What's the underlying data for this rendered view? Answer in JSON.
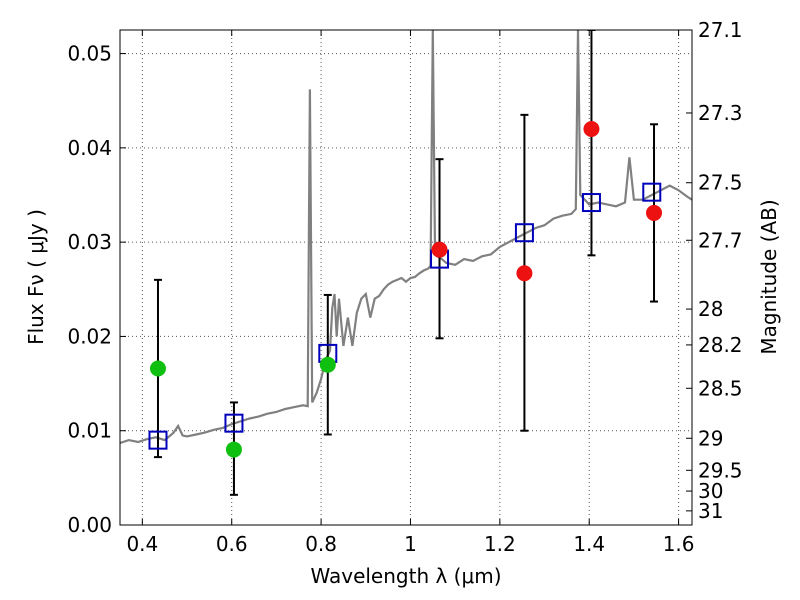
{
  "chart_data": {
    "type": "scatter",
    "xlabel": "Wavelength  λ (μm)",
    "ylabel": "Flux  Fν  ( μJy )",
    "ylabel_right": "Magnitude (AB)",
    "xlim": [
      0.35,
      1.63
    ],
    "ylim": [
      0.0,
      0.0525
    ],
    "grid": true,
    "x_ticks": [
      0.4,
      0.6,
      0.8,
      1.0,
      1.2,
      1.4,
      1.6
    ],
    "x_tick_labels": [
      "0.4",
      "0.6",
      "0.8",
      "1",
      "1.2",
      "1.4",
      "1.6"
    ],
    "y_ticks": [
      0.0,
      0.01,
      0.02,
      0.03,
      0.04,
      0.05
    ],
    "y_tick_labels": [
      "0.00",
      "0.01",
      "0.02",
      "0.03",
      "0.04",
      "0.05"
    ],
    "right_ticks": [
      {
        "label": "27.1",
        "flux": 0.0525
      },
      {
        "label": "27.3",
        "flux": 0.0437
      },
      {
        "label": "27.5",
        "flux": 0.0363
      },
      {
        "label": "27.7",
        "flux": 0.0302
      },
      {
        "label": "28",
        "flux": 0.0229
      },
      {
        "label": "28.2",
        "flux": 0.0191
      },
      {
        "label": "28.5",
        "flux": 0.0145
      },
      {
        "label": "29",
        "flux": 0.0092
      },
      {
        "label": "29.5",
        "flux": 0.0058
      },
      {
        "label": "30",
        "flux": 0.0036
      },
      {
        "label": "31",
        "flux": 0.0015
      }
    ],
    "colors": {
      "model": "#808080",
      "model_photometry": "#0000bb",
      "observed_green": "#10c010",
      "observed_red": "#ee1111",
      "errorbar": "#000000",
      "grid": "#555555"
    },
    "model_spectrum": [
      [
        0.35,
        0.0087
      ],
      [
        0.37,
        0.009
      ],
      [
        0.39,
        0.0088
      ],
      [
        0.41,
        0.0091
      ],
      [
        0.43,
        0.0093
      ],
      [
        0.45,
        0.009
      ],
      [
        0.46,
        0.0094
      ],
      [
        0.47,
        0.0098
      ],
      [
        0.48,
        0.0105
      ],
      [
        0.49,
        0.0095
      ],
      [
        0.5,
        0.0094
      ],
      [
        0.52,
        0.0096
      ],
      [
        0.54,
        0.0098
      ],
      [
        0.56,
        0.0101
      ],
      [
        0.58,
        0.0103
      ],
      [
        0.6,
        0.0107
      ],
      [
        0.62,
        0.011
      ],
      [
        0.64,
        0.0113
      ],
      [
        0.66,
        0.0115
      ],
      [
        0.68,
        0.0118
      ],
      [
        0.7,
        0.012
      ],
      [
        0.72,
        0.0123
      ],
      [
        0.74,
        0.0125
      ],
      [
        0.76,
        0.0127
      ],
      [
        0.77,
        0.0126
      ],
      [
        0.775,
        0.0462
      ],
      [
        0.78,
        0.013
      ],
      [
        0.79,
        0.014
      ],
      [
        0.8,
        0.0155
      ],
      [
        0.81,
        0.0175
      ],
      [
        0.82,
        0.0185
      ],
      [
        0.825,
        0.023
      ],
      [
        0.83,
        0.0245
      ],
      [
        0.835,
        0.02
      ],
      [
        0.84,
        0.024
      ],
      [
        0.85,
        0.019
      ],
      [
        0.86,
        0.022
      ],
      [
        0.87,
        0.019
      ],
      [
        0.88,
        0.0225
      ],
      [
        0.89,
        0.024
      ],
      [
        0.9,
        0.0245
      ],
      [
        0.91,
        0.022
      ],
      [
        0.92,
        0.024
      ],
      [
        0.93,
        0.0243
      ],
      [
        0.94,
        0.025
      ],
      [
        0.95,
        0.0255
      ],
      [
        0.96,
        0.0258
      ],
      [
        0.97,
        0.026
      ],
      [
        0.98,
        0.0262
      ],
      [
        0.99,
        0.0258
      ],
      [
        1.0,
        0.0262
      ],
      [
        1.01,
        0.0263
      ],
      [
        1.02,
        0.0267
      ],
      [
        1.03,
        0.027
      ],
      [
        1.04,
        0.0272
      ],
      [
        1.045,
        0.0275
      ],
      [
        1.05,
        0.0525
      ],
      [
        1.055,
        0.029
      ],
      [
        1.06,
        0.0285
      ],
      [
        1.07,
        0.0282
      ],
      [
        1.08,
        0.0278
      ],
      [
        1.1,
        0.0276
      ],
      [
        1.12,
        0.0282
      ],
      [
        1.14,
        0.028
      ],
      [
        1.16,
        0.0285
      ],
      [
        1.18,
        0.0287
      ],
      [
        1.2,
        0.0295
      ],
      [
        1.22,
        0.03
      ],
      [
        1.24,
        0.0305
      ],
      [
        1.26,
        0.031
      ],
      [
        1.28,
        0.0315
      ],
      [
        1.3,
        0.0318
      ],
      [
        1.32,
        0.0325
      ],
      [
        1.34,
        0.0328
      ],
      [
        1.36,
        0.033
      ],
      [
        1.37,
        0.0335
      ],
      [
        1.375,
        0.0525
      ],
      [
        1.38,
        0.035
      ],
      [
        1.39,
        0.0345
      ],
      [
        1.4,
        0.034
      ],
      [
        1.42,
        0.0342
      ],
      [
        1.44,
        0.034
      ],
      [
        1.46,
        0.0338
      ],
      [
        1.48,
        0.0342
      ],
      [
        1.49,
        0.039
      ],
      [
        1.5,
        0.0345
      ],
      [
        1.52,
        0.0345
      ],
      [
        1.54,
        0.035
      ],
      [
        1.56,
        0.0355
      ],
      [
        1.58,
        0.036
      ],
      [
        1.6,
        0.0355
      ],
      [
        1.62,
        0.0348
      ],
      [
        1.63,
        0.0345
      ]
    ],
    "model_photometry": [
      {
        "x": 0.435,
        "y": 0.009
      },
      {
        "x": 0.605,
        "y": 0.0108
      },
      {
        "x": 0.815,
        "y": 0.0182
      },
      {
        "x": 1.065,
        "y": 0.0282
      },
      {
        "x": 1.255,
        "y": 0.031
      },
      {
        "x": 1.405,
        "y": 0.0342
      },
      {
        "x": 1.54,
        "y": 0.0353
      }
    ],
    "observed_photometry": [
      {
        "x": 0.435,
        "y": 0.0166,
        "yerr_low": 0.0072,
        "yerr_high": 0.026,
        "color": "green"
      },
      {
        "x": 0.605,
        "y": 0.008,
        "yerr_low": 0.0032,
        "yerr_high": 0.013,
        "color": "green"
      },
      {
        "x": 0.815,
        "y": 0.017,
        "yerr_low": 0.0096,
        "yerr_high": 0.0244,
        "color": "green"
      },
      {
        "x": 1.065,
        "y": 0.0292,
        "yerr_low": 0.0198,
        "yerr_high": 0.0388,
        "color": "red"
      },
      {
        "x": 1.255,
        "y": 0.0267,
        "yerr_low": 0.01,
        "yerr_high": 0.0435,
        "color": "red"
      },
      {
        "x": 1.405,
        "y": 0.042,
        "yerr_low": 0.0286,
        "yerr_high": 0.0525,
        "color": "red"
      },
      {
        "x": 1.545,
        "y": 0.0331,
        "yerr_low": 0.0237,
        "yerr_high": 0.0425,
        "color": "red"
      }
    ]
  }
}
